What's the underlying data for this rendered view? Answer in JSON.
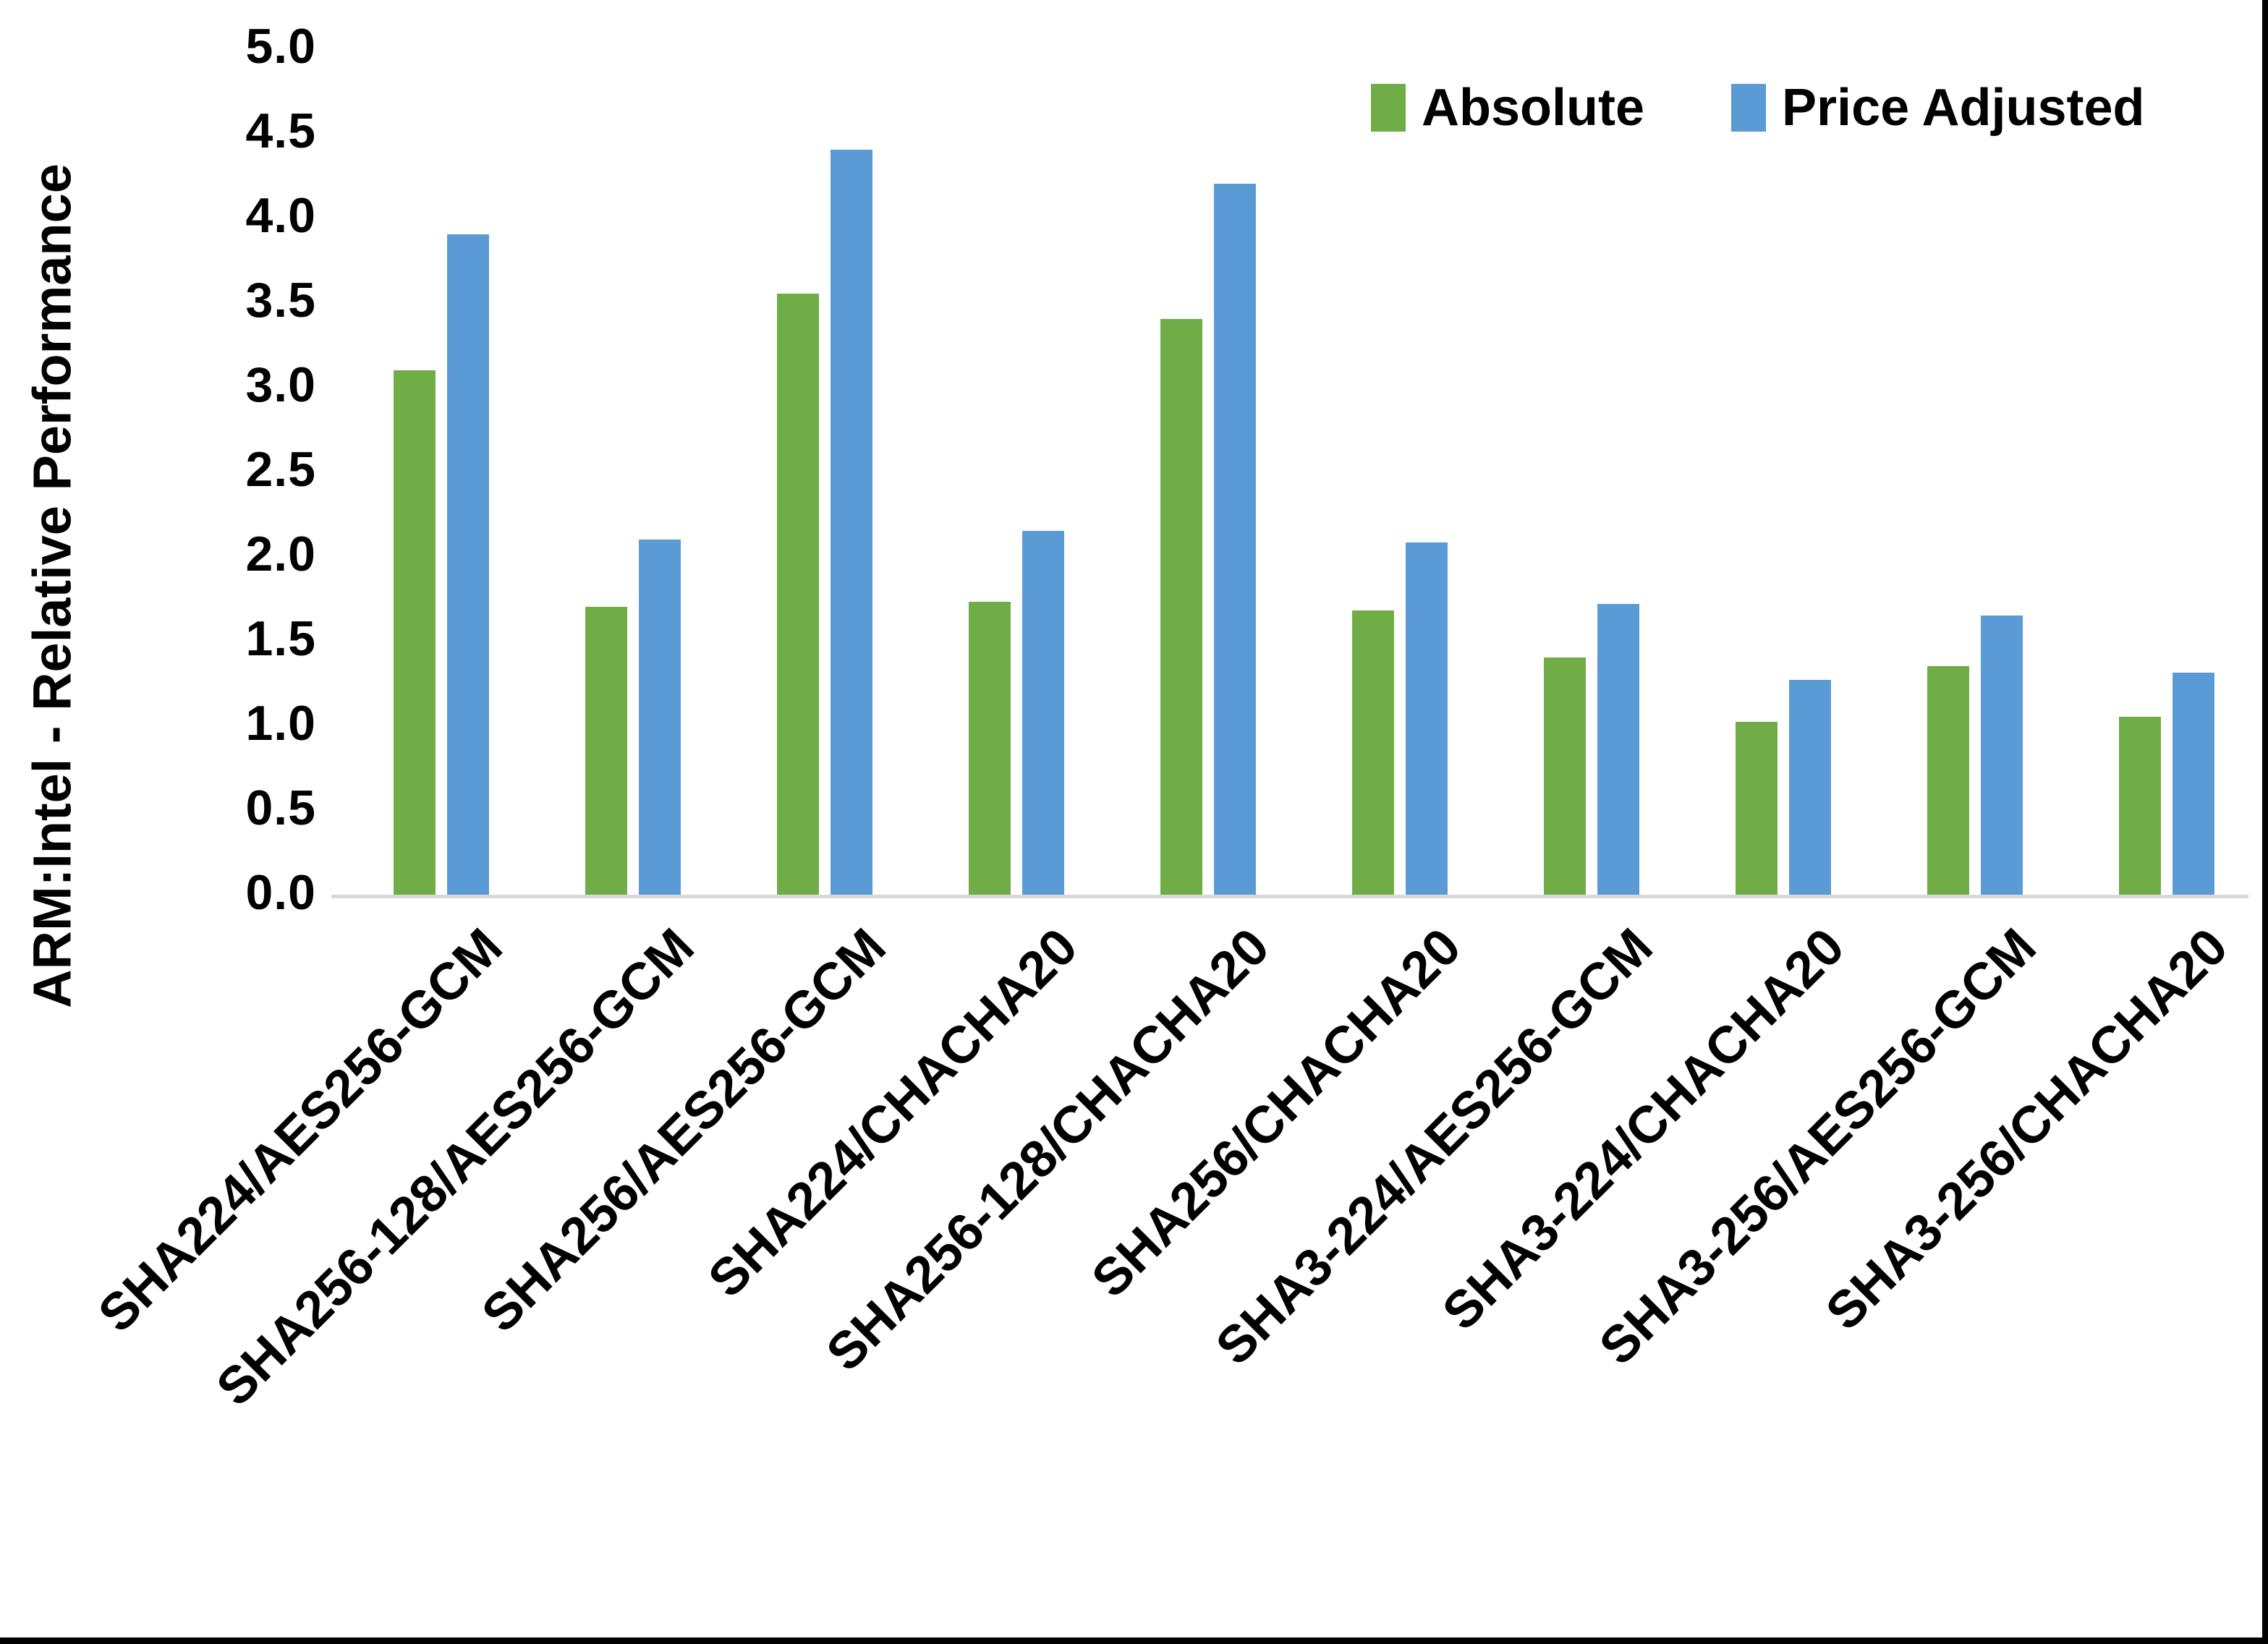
{
  "figure": {
    "background": "#ffffff",
    "border_color": "#000000"
  },
  "y_axis": {
    "title": "ARM:Intel - Relative Performance",
    "ticks": [
      "0.0",
      "0.5",
      "1.0",
      "1.5",
      "2.0",
      "2.5",
      "3.0",
      "3.5",
      "4.0",
      "4.5",
      "5.0"
    ]
  },
  "chart_data": {
    "type": "bar",
    "title": "",
    "xlabel": "",
    "ylabel": "ARM:Intel - Relative Performance",
    "ylim": [
      0,
      5
    ],
    "ytick_step": 0.5,
    "grid": false,
    "legend_position": "top-right",
    "axis_line_color": "#d9d9d9",
    "categories": [
      "SHA224/AES256-GCM",
      "SHA256-128/AES256-GCM",
      "SHA256/AES256-GCM",
      "SHA224/CHACHA20",
      "SHA256-128/CHACHA20",
      "SHA256/CHACHA20",
      "SHA3-224/AES256-GCM",
      "SHA3-224/CHACHA20",
      "SHA3-256/AES256-GCM",
      "SHA3-256/CHACHA20"
    ],
    "series": [
      {
        "name": "Absolute",
        "color": "#70AD47",
        "values": [
          3.1,
          1.7,
          3.55,
          1.73,
          3.4,
          1.68,
          1.4,
          1.02,
          1.35,
          1.05
        ]
      },
      {
        "name": "Price Adjusted",
        "color": "#5B9BD5",
        "values": [
          3.9,
          2.1,
          4.4,
          2.15,
          4.2,
          2.08,
          1.72,
          1.27,
          1.65,
          1.31
        ]
      }
    ]
  }
}
